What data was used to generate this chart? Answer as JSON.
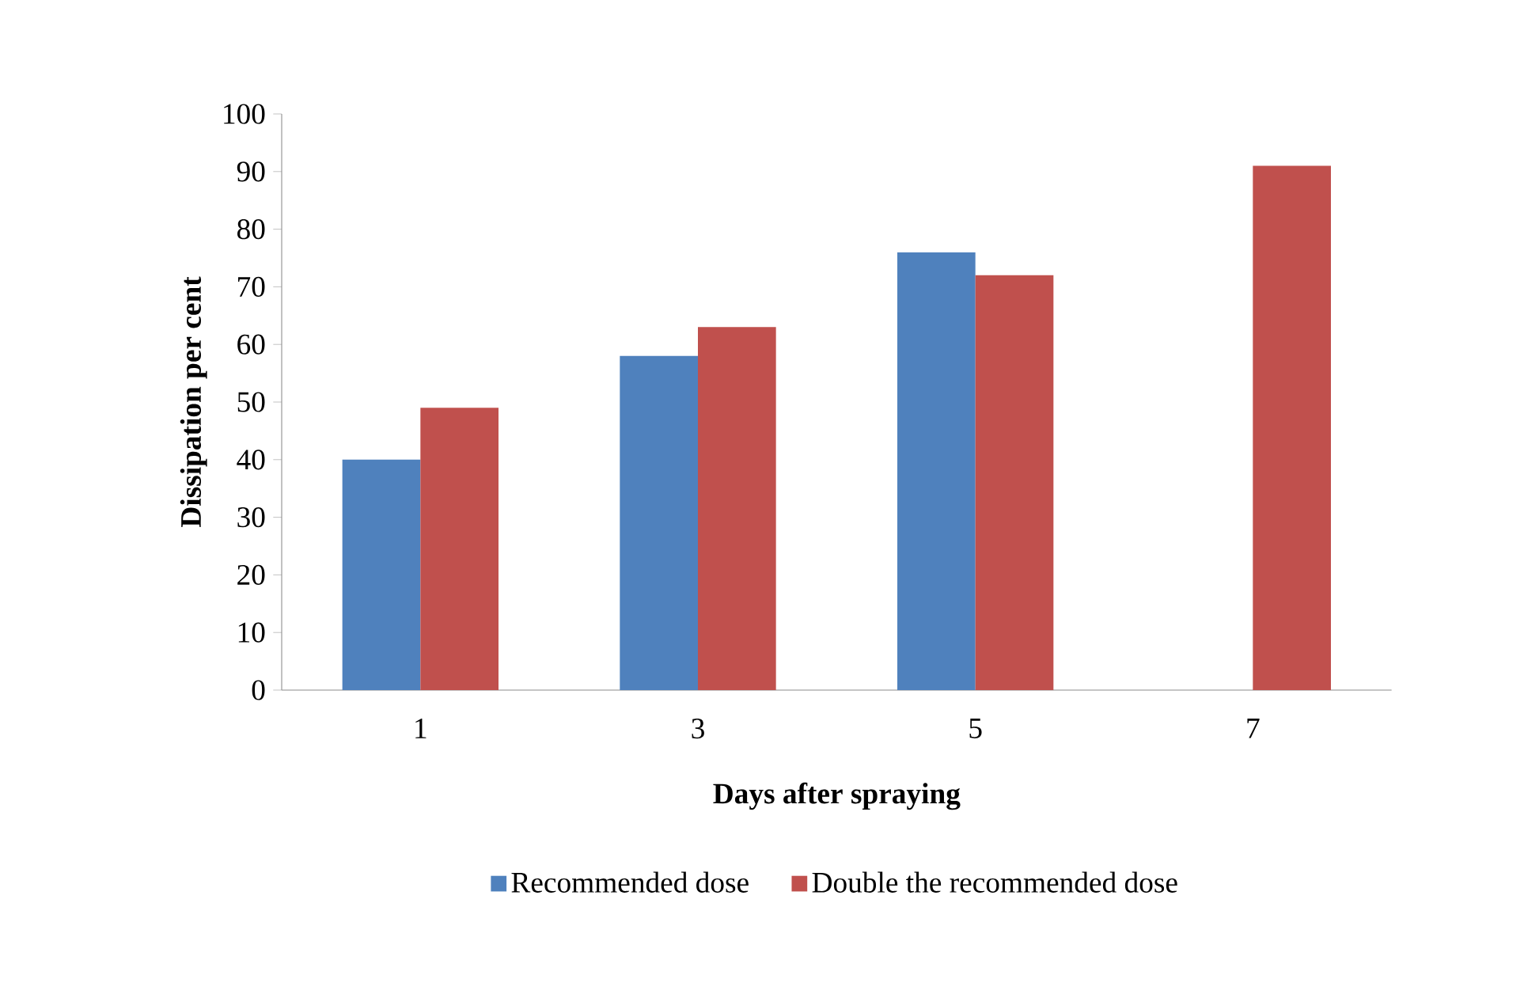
{
  "chart_data": {
    "type": "bar",
    "xlabel": "Days after spraying",
    "ylabel": "Dissipation per cent",
    "categories": [
      "1",
      "3",
      "5",
      "7"
    ],
    "series": [
      {
        "name": "Recommended dose",
        "color": "#4f81bd",
        "values": [
          40,
          58,
          76,
          null
        ]
      },
      {
        "name": "Double the recommended dose",
        "color": "#c0504d",
        "values": [
          49,
          63,
          72,
          91
        ]
      }
    ],
    "ylim": [
      0,
      100
    ],
    "yticks": [
      0,
      10,
      20,
      30,
      40,
      50,
      60,
      70,
      80,
      90,
      100
    ],
    "grid": false,
    "legend": "bottom"
  }
}
